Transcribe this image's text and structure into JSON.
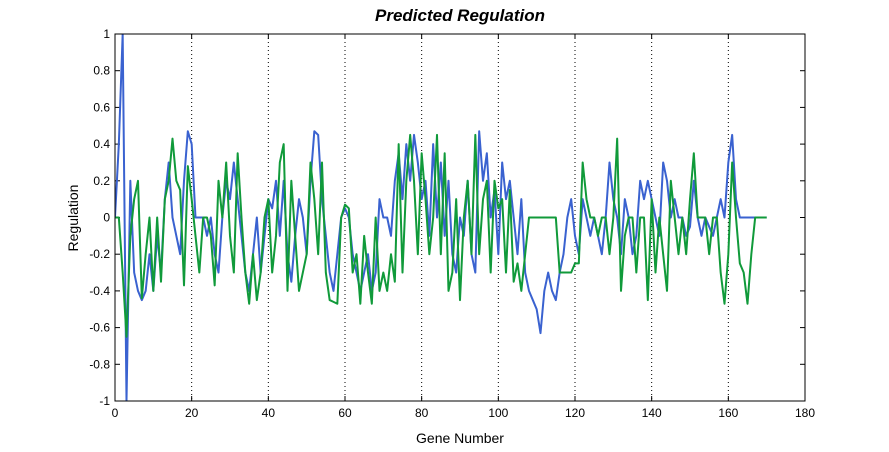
{
  "chart_data": {
    "type": "line",
    "title": "Predicted Regulation",
    "x_label": "Gene Number",
    "y_label": "Regulation",
    "x": [
      0,
      1,
      2,
      3,
      4,
      5,
      6,
      7,
      8,
      9,
      10,
      11,
      12,
      13,
      14,
      15,
      16,
      17,
      18,
      19,
      20,
      21,
      22,
      23,
      24,
      25,
      26,
      27,
      28,
      29,
      30,
      31,
      32,
      33,
      34,
      35,
      36,
      37,
      38,
      39,
      40,
      41,
      42,
      43,
      44,
      45,
      46,
      47,
      48,
      49,
      50,
      51,
      52,
      53,
      54,
      55,
      56,
      57,
      58,
      59,
      60,
      61,
      62,
      63,
      64,
      65,
      66,
      67,
      68,
      69,
      70,
      71,
      72,
      73,
      74,
      75,
      76,
      77,
      78,
      79,
      80,
      81,
      82,
      83,
      84,
      85,
      86,
      87,
      88,
      89,
      90,
      91,
      92,
      93,
      94,
      95,
      96,
      97,
      98,
      99,
      100,
      101,
      102,
      103,
      104,
      105,
      106,
      107,
      108,
      109,
      110,
      111,
      112,
      113,
      114,
      115,
      116,
      117,
      118,
      119,
      120,
      121,
      122,
      123,
      124,
      125,
      126,
      127,
      128,
      129,
      130,
      131,
      132,
      133,
      134,
      135,
      136,
      137,
      138,
      139,
      140,
      141,
      142,
      143,
      144,
      145,
      146,
      147,
      148,
      149,
      150,
      151,
      152,
      153,
      154,
      155,
      156,
      157,
      158,
      159,
      160,
      161,
      162,
      163,
      164,
      165,
      166,
      167,
      168,
      169,
      170
    ],
    "series": [
      {
        "color": "#3a62d0",
        "values": [
          0,
          0.4,
          1,
          -1,
          0.2,
          -0.3,
          -0.4,
          -0.45,
          -0.4,
          -0.2,
          -0.4,
          -0.1,
          -0.3,
          0.1,
          0.3,
          0,
          -0.1,
          -0.2,
          0.2,
          0.47,
          0.4,
          0,
          0,
          0,
          -0.1,
          0,
          -0.2,
          -0.3,
          0,
          0.2,
          0.1,
          0.3,
          0.1,
          -0.1,
          -0.3,
          -0.4,
          -0.2,
          0,
          -0.3,
          -0.1,
          0.1,
          0.05,
          0.2,
          -0.1,
          0.2,
          -0.2,
          -0.35,
          -0.1,
          0.1,
          0,
          -0.2,
          0.2,
          0.47,
          0.45,
          0.1,
          -0.1,
          -0.3,
          -0.4,
          -0.2,
          0,
          0.05,
          0,
          -0.2,
          -0.3,
          -0.4,
          -0.3,
          -0.2,
          -0.4,
          -0.3,
          0.1,
          0,
          0,
          -0.1,
          0.2,
          0.35,
          0.1,
          0.4,
          0.2,
          0.45,
          0.3,
          0.1,
          0.2,
          -0.1,
          0.4,
          0,
          0.3,
          -0.1,
          0.2,
          -0.2,
          -0.3,
          0,
          -0.1,
          0.2,
          -0.2,
          -0.3,
          0.47,
          0.2,
          0.35,
          0,
          0.15,
          -0.2,
          0.3,
          0.1,
          0.2,
          0,
          -0.2,
          0.1,
          -0.3,
          -0.4,
          -0.45,
          -0.5,
          -0.63,
          -0.4,
          -0.3,
          -0.4,
          -0.45,
          -0.3,
          -0.2,
          0,
          0.1,
          -0.1,
          -0.2,
          0.1,
          0,
          -0.1,
          0,
          -0.1,
          -0.2,
          0,
          0.3,
          0.1,
          0,
          -0.2,
          0.1,
          0,
          -0.2,
          -0.1,
          0.2,
          0.1,
          0.2,
          0.1,
          0,
          -0.1,
          0.3,
          0.2,
          0,
          0.1,
          0,
          0,
          -0.1,
          -0.05,
          0.2,
          0,
          -0.1,
          0,
          -0.05,
          -0.1,
          0,
          0.1,
          0,
          0.3,
          0.45,
          0.1,
          0,
          0,
          0,
          0,
          0,
          0,
          0,
          0
        ]
      },
      {
        "color": "#109a3a",
        "values": [
          0,
          0,
          -0.3,
          -0.65,
          -0.1,
          0.1,
          0.2,
          -0.44,
          -0.2,
          0,
          -0.4,
          0,
          -0.35,
          0.1,
          0.2,
          0.43,
          0.2,
          0.15,
          -0.37,
          0.28,
          0.1,
          -0.1,
          -0.3,
          0,
          0,
          -0.1,
          -0.37,
          0.2,
          0,
          0.3,
          -0.1,
          -0.3,
          0.35,
          0,
          -0.3,
          -0.47,
          -0.2,
          -0.45,
          -0.3,
          0,
          0.1,
          -0.3,
          -0.1,
          0.3,
          0.4,
          -0.4,
          0.2,
          -0.1,
          -0.4,
          -0.3,
          -0.2,
          0.3,
          0.1,
          -0.2,
          0.3,
          -0.3,
          -0.45,
          -0.46,
          -0.47,
          0,
          0.07,
          0.05,
          -0.3,
          -0.2,
          -0.47,
          -0.1,
          -0.3,
          -0.47,
          0,
          -0.4,
          -0.3,
          -0.4,
          -0.2,
          -0.35,
          0.4,
          -0.3,
          0.2,
          0.45,
          0.2,
          -0.2,
          0.35,
          0.1,
          -0.2,
          0,
          0.45,
          -0.2,
          0.35,
          -0.4,
          -0.3,
          0.1,
          -0.45,
          0,
          0.2,
          -0.2,
          0.45,
          -0.2,
          0.1,
          0.2,
          -0.3,
          0.2,
          0.05,
          0.1,
          -0.3,
          0.15,
          -0.35,
          -0.25,
          -0.4,
          -0.2,
          0,
          0,
          0,
          0,
          0,
          0,
          0,
          0,
          -0.3,
          -0.3,
          -0.3,
          -0.3,
          -0.25,
          -0.25,
          0.3,
          0.1,
          0,
          0,
          -0.1,
          0,
          0,
          -0.2,
          0,
          0.43,
          -0.4,
          -0.1,
          0,
          0,
          -0.3,
          0,
          0,
          -0.45,
          0.1,
          -0.3,
          0,
          -0.2,
          -0.4,
          0.2,
          0,
          -0.2,
          0,
          -0.2,
          0.1,
          0.35,
          0,
          0,
          0,
          -0.2,
          0,
          0,
          -0.3,
          -0.47,
          -0.2,
          0.3,
          0,
          -0.25,
          -0.3,
          -0.47,
          -0.2,
          0,
          0,
          0,
          0
        ]
      }
    ],
    "xlim": [
      0,
      180
    ],
    "xticks": [
      0,
      20,
      40,
      60,
      80,
      100,
      120,
      140,
      160,
      180
    ],
    "ylim": [
      -1,
      1
    ],
    "yticks": [
      -1,
      -0.8,
      -0.6,
      -0.4,
      -0.2,
      0,
      0.2,
      0.4,
      0.6,
      0.8,
      1
    ],
    "xgrid": true
  }
}
